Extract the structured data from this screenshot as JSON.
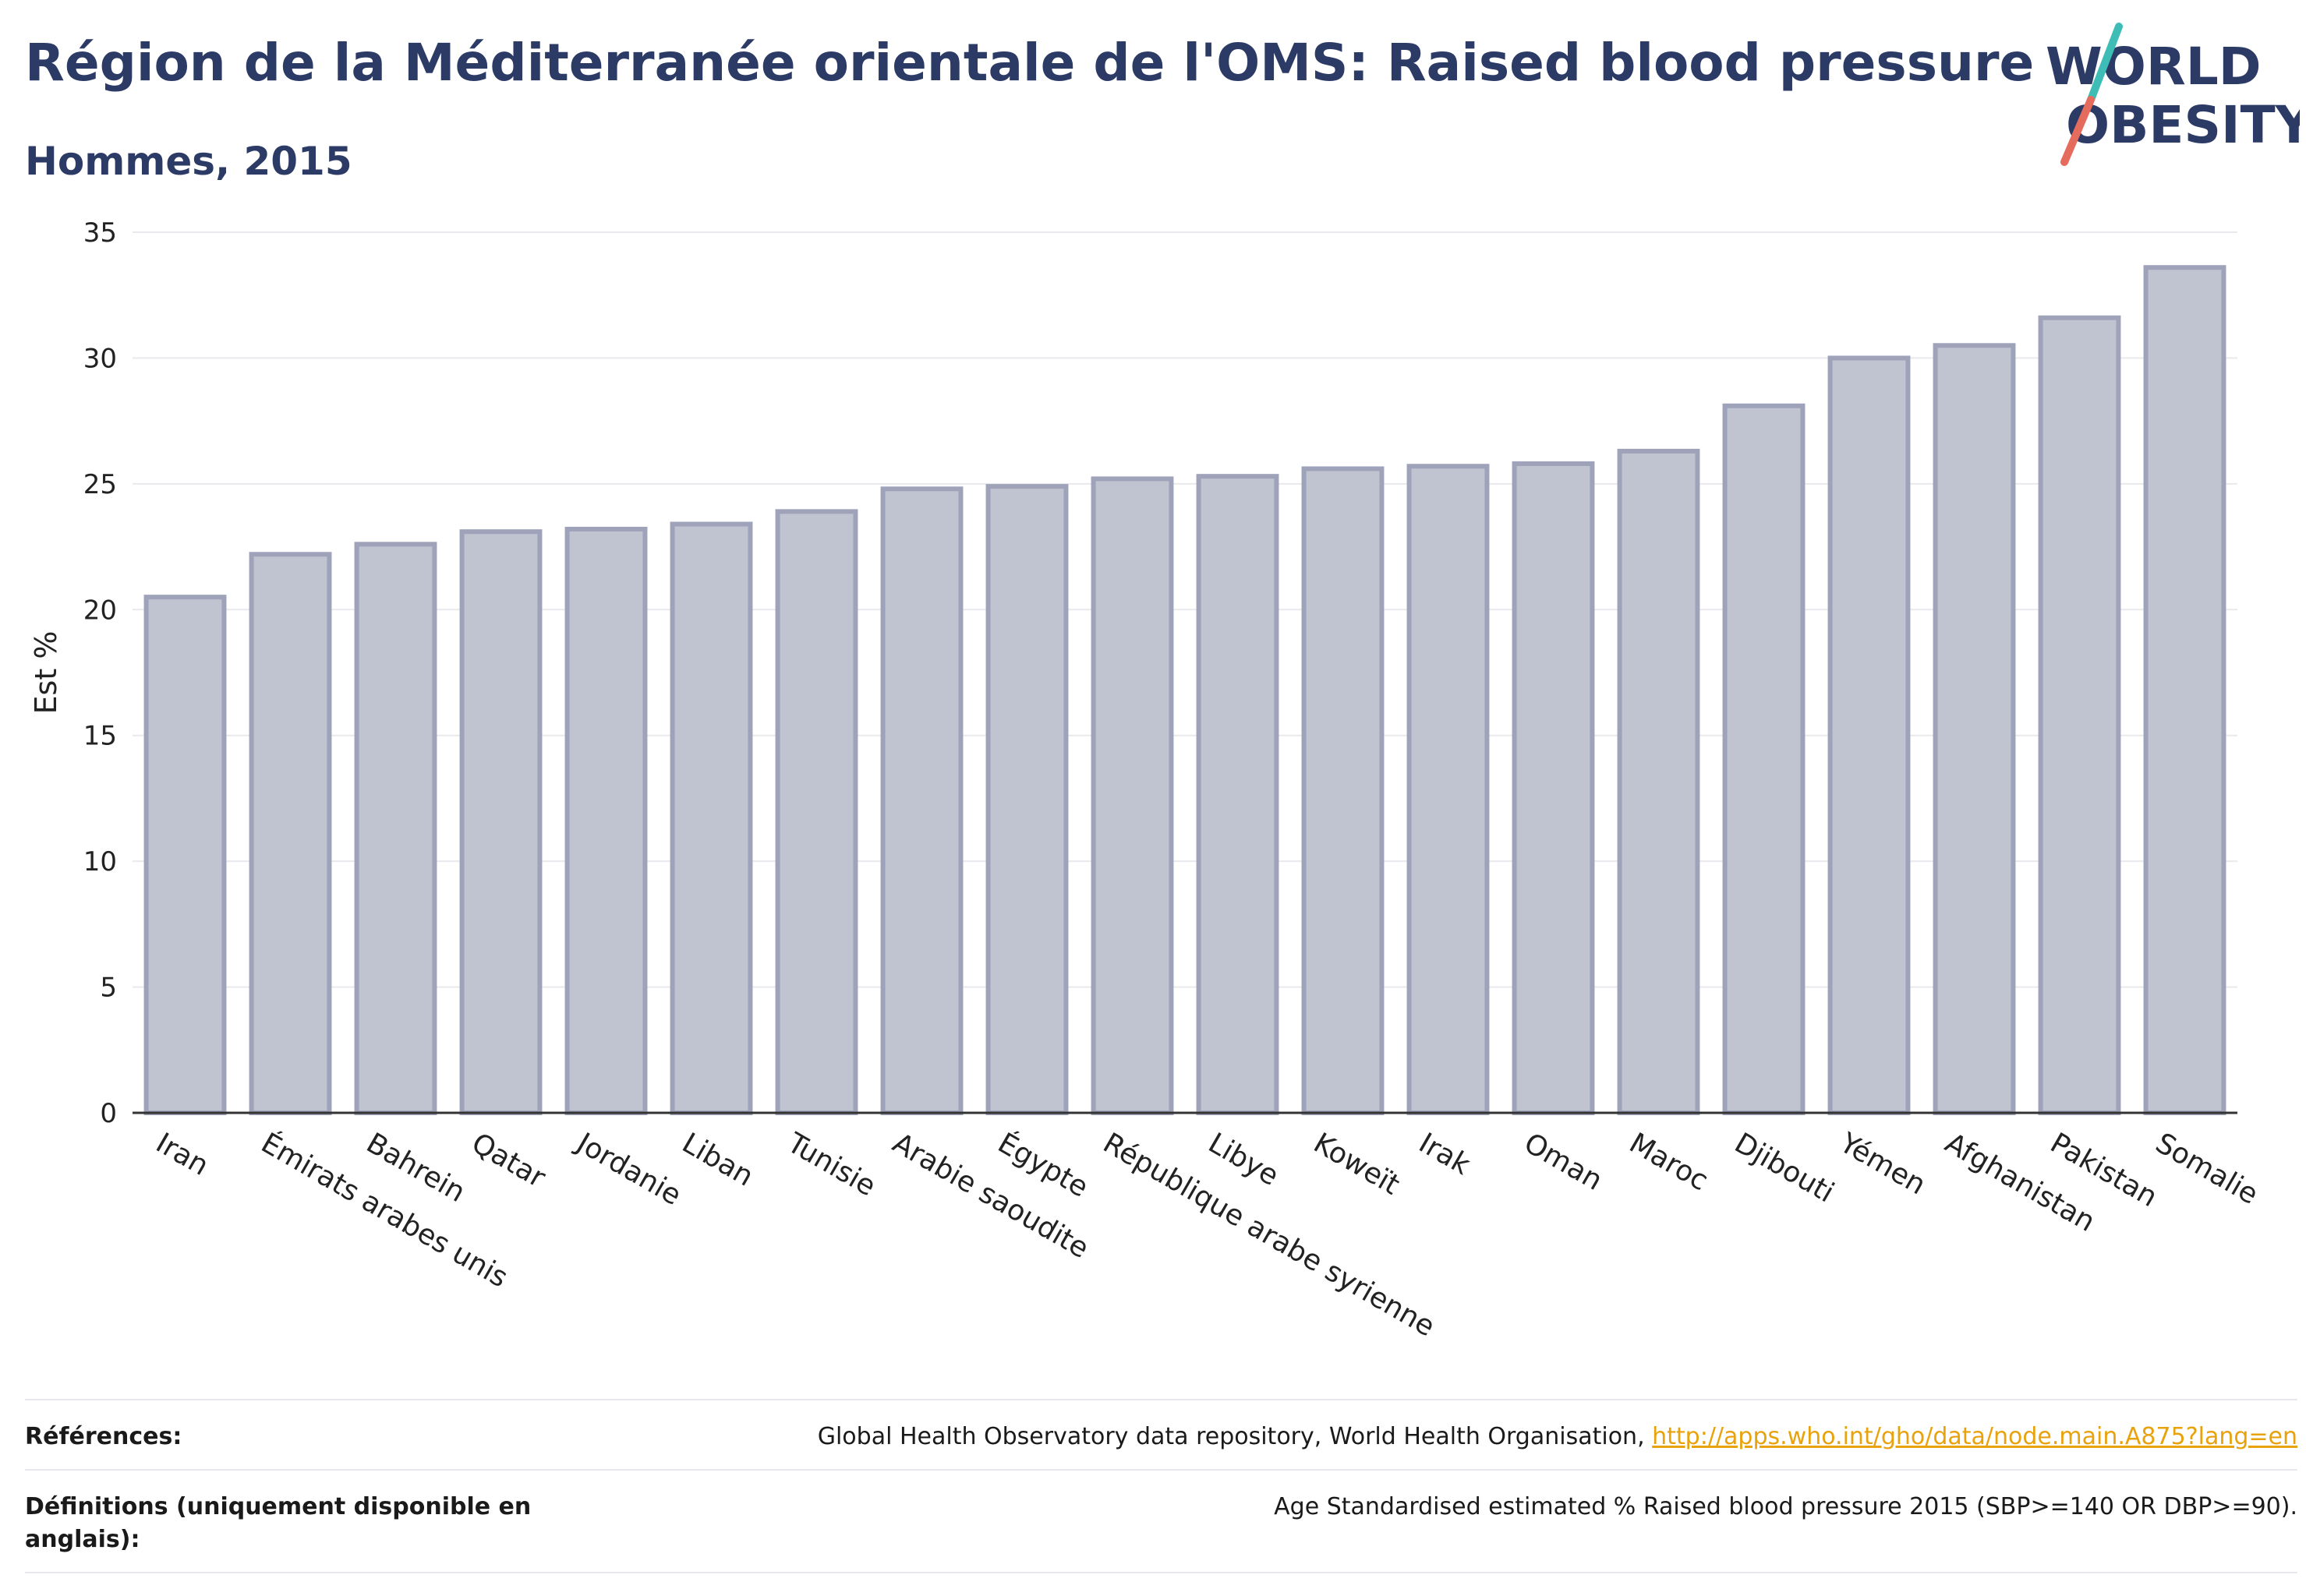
{
  "header": {
    "title": "Région de la Méditerranée orientale de l'OMS: Raised blood pressure",
    "subtitle": "Hommes, 2015"
  },
  "logo": {
    "line1": "WORLD",
    "line2": "OBESITY",
    "colors": {
      "text": "#2c3a66",
      "slash_teal": "#3dbdb5",
      "slash_coral": "#e56b5d"
    }
  },
  "chart_data": {
    "type": "bar",
    "ylabel": "Est %",
    "ylim": [
      0,
      35
    ],
    "yticks": [
      0,
      5,
      10,
      15,
      20,
      25,
      30,
      35
    ],
    "grid": true,
    "categories": [
      "Iran",
      "Émirats arabes unis",
      "Bahrein",
      "Qatar",
      "Jordanie",
      "Liban",
      "Tunisie",
      "Arabie saoudite",
      "Égypte",
      "République arabe syrienne",
      "Libye",
      "Koweït",
      "Irak",
      "Oman",
      "Maroc",
      "Djibouti",
      "Yémen",
      "Afghanistan",
      "Pakistan",
      "Somalie"
    ],
    "values": [
      20.5,
      22.2,
      22.6,
      23.1,
      23.2,
      23.4,
      23.9,
      24.8,
      24.9,
      25.2,
      25.3,
      25.6,
      25.7,
      25.8,
      26.3,
      28.1,
      30.0,
      30.5,
      31.6,
      33.6
    ],
    "colors": {
      "bar_fill": "#c0c3d0",
      "bar_stroke": "#9ea3ba",
      "grid": "#e9e9ee",
      "axis": "#333333"
    }
  },
  "footer": {
    "references_label": "Références:",
    "references_text": "Global Health Observatory data repository, World Health Organisation, ",
    "references_link": "http://apps.who.int/gho/data/node.main.A875?lang=en",
    "definitions_label": "Définitions (uniquement disponible en anglais):",
    "definitions_text": "Age Standardised estimated % Raised blood pressure 2015 (SBP>=140 OR DBP>=90)."
  }
}
